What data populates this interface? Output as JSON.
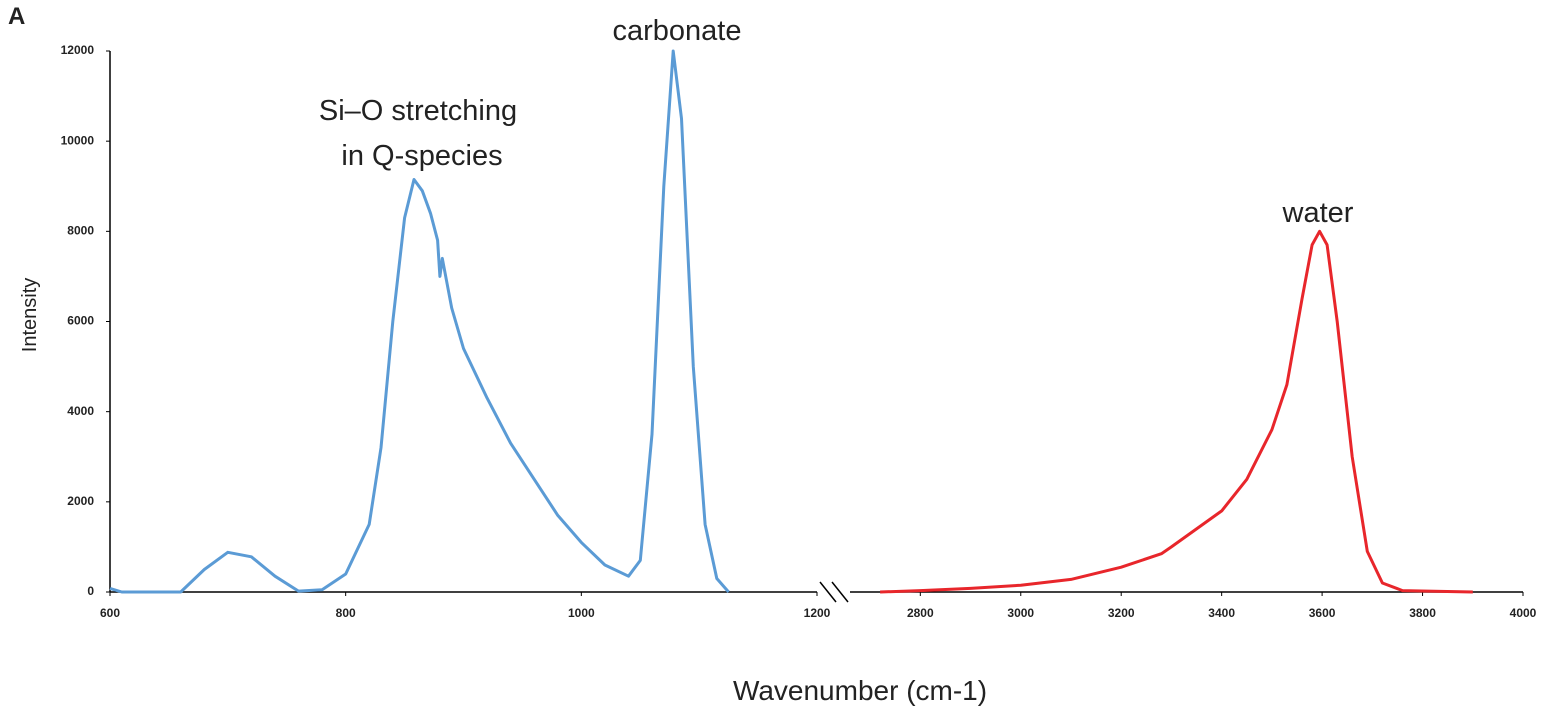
{
  "panel_label": "A",
  "chart_data": [
    {
      "type": "line",
      "ylabel": "Intensity",
      "xlabel": "Wavenumber  (cm-1)",
      "xlim": [
        600,
        1200
      ],
      "xticks": [
        600,
        800,
        1000,
        1200
      ],
      "ylim": [
        0,
        12000
      ],
      "yticks": [
        0,
        2000,
        4000,
        6000,
        8000,
        10000,
        12000
      ],
      "annotations": [
        "carbonate",
        "Si–O stretching",
        "in Q-species"
      ],
      "series": [
        {
          "color": "#5b9bd5",
          "x": [
            600,
            610,
            660,
            680,
            700,
            720,
            740,
            760,
            780,
            800,
            820,
            830,
            840,
            850,
            858,
            865,
            872,
            878,
            880,
            882,
            890,
            900,
            920,
            940,
            960,
            980,
            1000,
            1020,
            1040,
            1050,
            1060,
            1070,
            1078,
            1085,
            1095,
            1105,
            1115,
            1125
          ],
          "values": [
            80,
            0,
            0,
            500,
            880,
            780,
            350,
            20,
            50,
            400,
            1500,
            3200,
            6000,
            8300,
            9150,
            8900,
            8400,
            7800,
            7000,
            7400,
            6300,
            5400,
            4300,
            3300,
            2500,
            1700,
            1100,
            600,
            350,
            700,
            3500,
            9000,
            12000,
            10500,
            5000,
            1500,
            300,
            0
          ]
        }
      ]
    },
    {
      "type": "line",
      "xlim": [
        2660,
        4000
      ],
      "xticks": [
        2800,
        3000,
        3200,
        3400,
        3600,
        3800,
        4000
      ],
      "ylim": [
        0,
        12000
      ],
      "annotations": [
        "water"
      ],
      "series": [
        {
          "color": "#e8262b",
          "x": [
            2720,
            2800,
            2900,
            3000,
            3100,
            3200,
            3280,
            3300,
            3400,
            3450,
            3500,
            3530,
            3560,
            3580,
            3595,
            3610,
            3630,
            3660,
            3690,
            3720,
            3760,
            3900
          ],
          "values": [
            0,
            30,
            80,
            150,
            280,
            550,
            850,
            1000,
            1800,
            2500,
            3600,
            4600,
            6500,
            7700,
            8000,
            7700,
            6000,
            3000,
            900,
            200,
            30,
            0
          ]
        }
      ]
    }
  ]
}
